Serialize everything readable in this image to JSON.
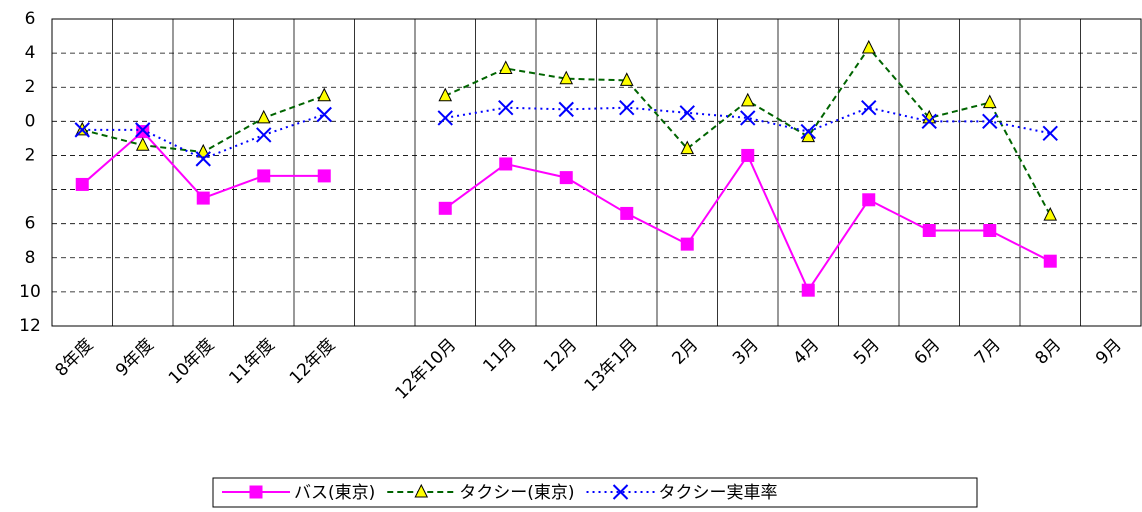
{
  "chart_data": {
    "type": "line",
    "categories": [
      "8年度",
      "9年度",
      "10年度",
      "11年度",
      "12年度",
      null,
      "12年10月",
      "11月",
      "12月",
      "13年1月",
      "2月",
      "3月",
      "4月",
      "5月",
      "6月",
      "7月",
      "8月",
      "9月"
    ],
    "series": [
      {
        "name": "バス(東京)",
        "color": "#ff00ff",
        "marker": "square",
        "dash": "solid",
        "values": [
          -3.7,
          -0.6,
          -4.5,
          -3.2,
          -3.2,
          null,
          -5.1,
          -2.5,
          -3.3,
          -5.4,
          -7.2,
          -2.0,
          -9.9,
          -4.6,
          -6.4,
          -6.4,
          -8.2,
          null
        ]
      },
      {
        "name": "タクシー(東京)",
        "color": "#006400",
        "marker": "triangle",
        "dash": "dashed",
        "values": [
          -0.5,
          -1.4,
          -1.8,
          0.2,
          1.5,
          null,
          1.5,
          3.1,
          2.5,
          2.4,
          -1.6,
          1.2,
          -0.9,
          4.3,
          0.2,
          1.1,
          -5.5,
          null
        ]
      },
      {
        "name": "タクシー実車率",
        "color": "#0000ff",
        "marker": "x",
        "dash": "dotted",
        "values": [
          -0.5,
          -0.5,
          -2.2,
          -0.8,
          0.4,
          null,
          0.2,
          0.8,
          0.7,
          0.8,
          0.5,
          0.2,
          -0.6,
          0.8,
          0.0,
          0.0,
          -0.7,
          null
        ]
      }
    ],
    "ylim": [
      -12,
      6
    ],
    "yticks": [
      6,
      4,
      2,
      0,
      {
        "value": -2,
        "label": "2"
      },
      {
        "value": -4,
        "label": null
      },
      {
        "value": -6,
        "label": "6"
      },
      {
        "value": -8,
        "label": "8"
      },
      {
        "value": -10,
        "label": "10"
      },
      {
        "value": -12,
        "label": "12"
      }
    ],
    "grid": true,
    "legend": "bottom"
  }
}
